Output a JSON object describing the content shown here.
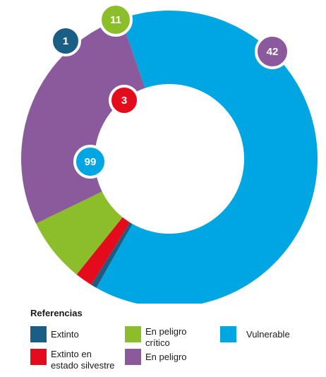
{
  "chart_data": {
    "type": "donut",
    "legend_title": "Referencias",
    "legend_position": "bottom",
    "slices": [
      {
        "label": "Extinto",
        "value": 1,
        "color": "#1b5e85"
      },
      {
        "label": "Extinto en estado silvestre",
        "value": 3,
        "color": "#e30b1c"
      },
      {
        "label": "En peligro crítico",
        "value": 11,
        "color": "#8cbd2a"
      },
      {
        "label": "En peligro",
        "value": 42,
        "color": "#8a5a9d"
      },
      {
        "label": "Vulnerable",
        "value": 99,
        "color": "#00a6e2"
      }
    ],
    "data_labels": [
      "1",
      "3",
      "11",
      "42",
      "99"
    ],
    "legend": {
      "extinto": "Extinto",
      "extinto_silvestre_line1": "Extinto en",
      "extinto_silvestre_line2": "estado silvestre",
      "critico_line1": "En peligro",
      "critico_line2": "crítico",
      "en_peligro": "En peligro",
      "vulnerable": "Vulnerable"
    }
  }
}
